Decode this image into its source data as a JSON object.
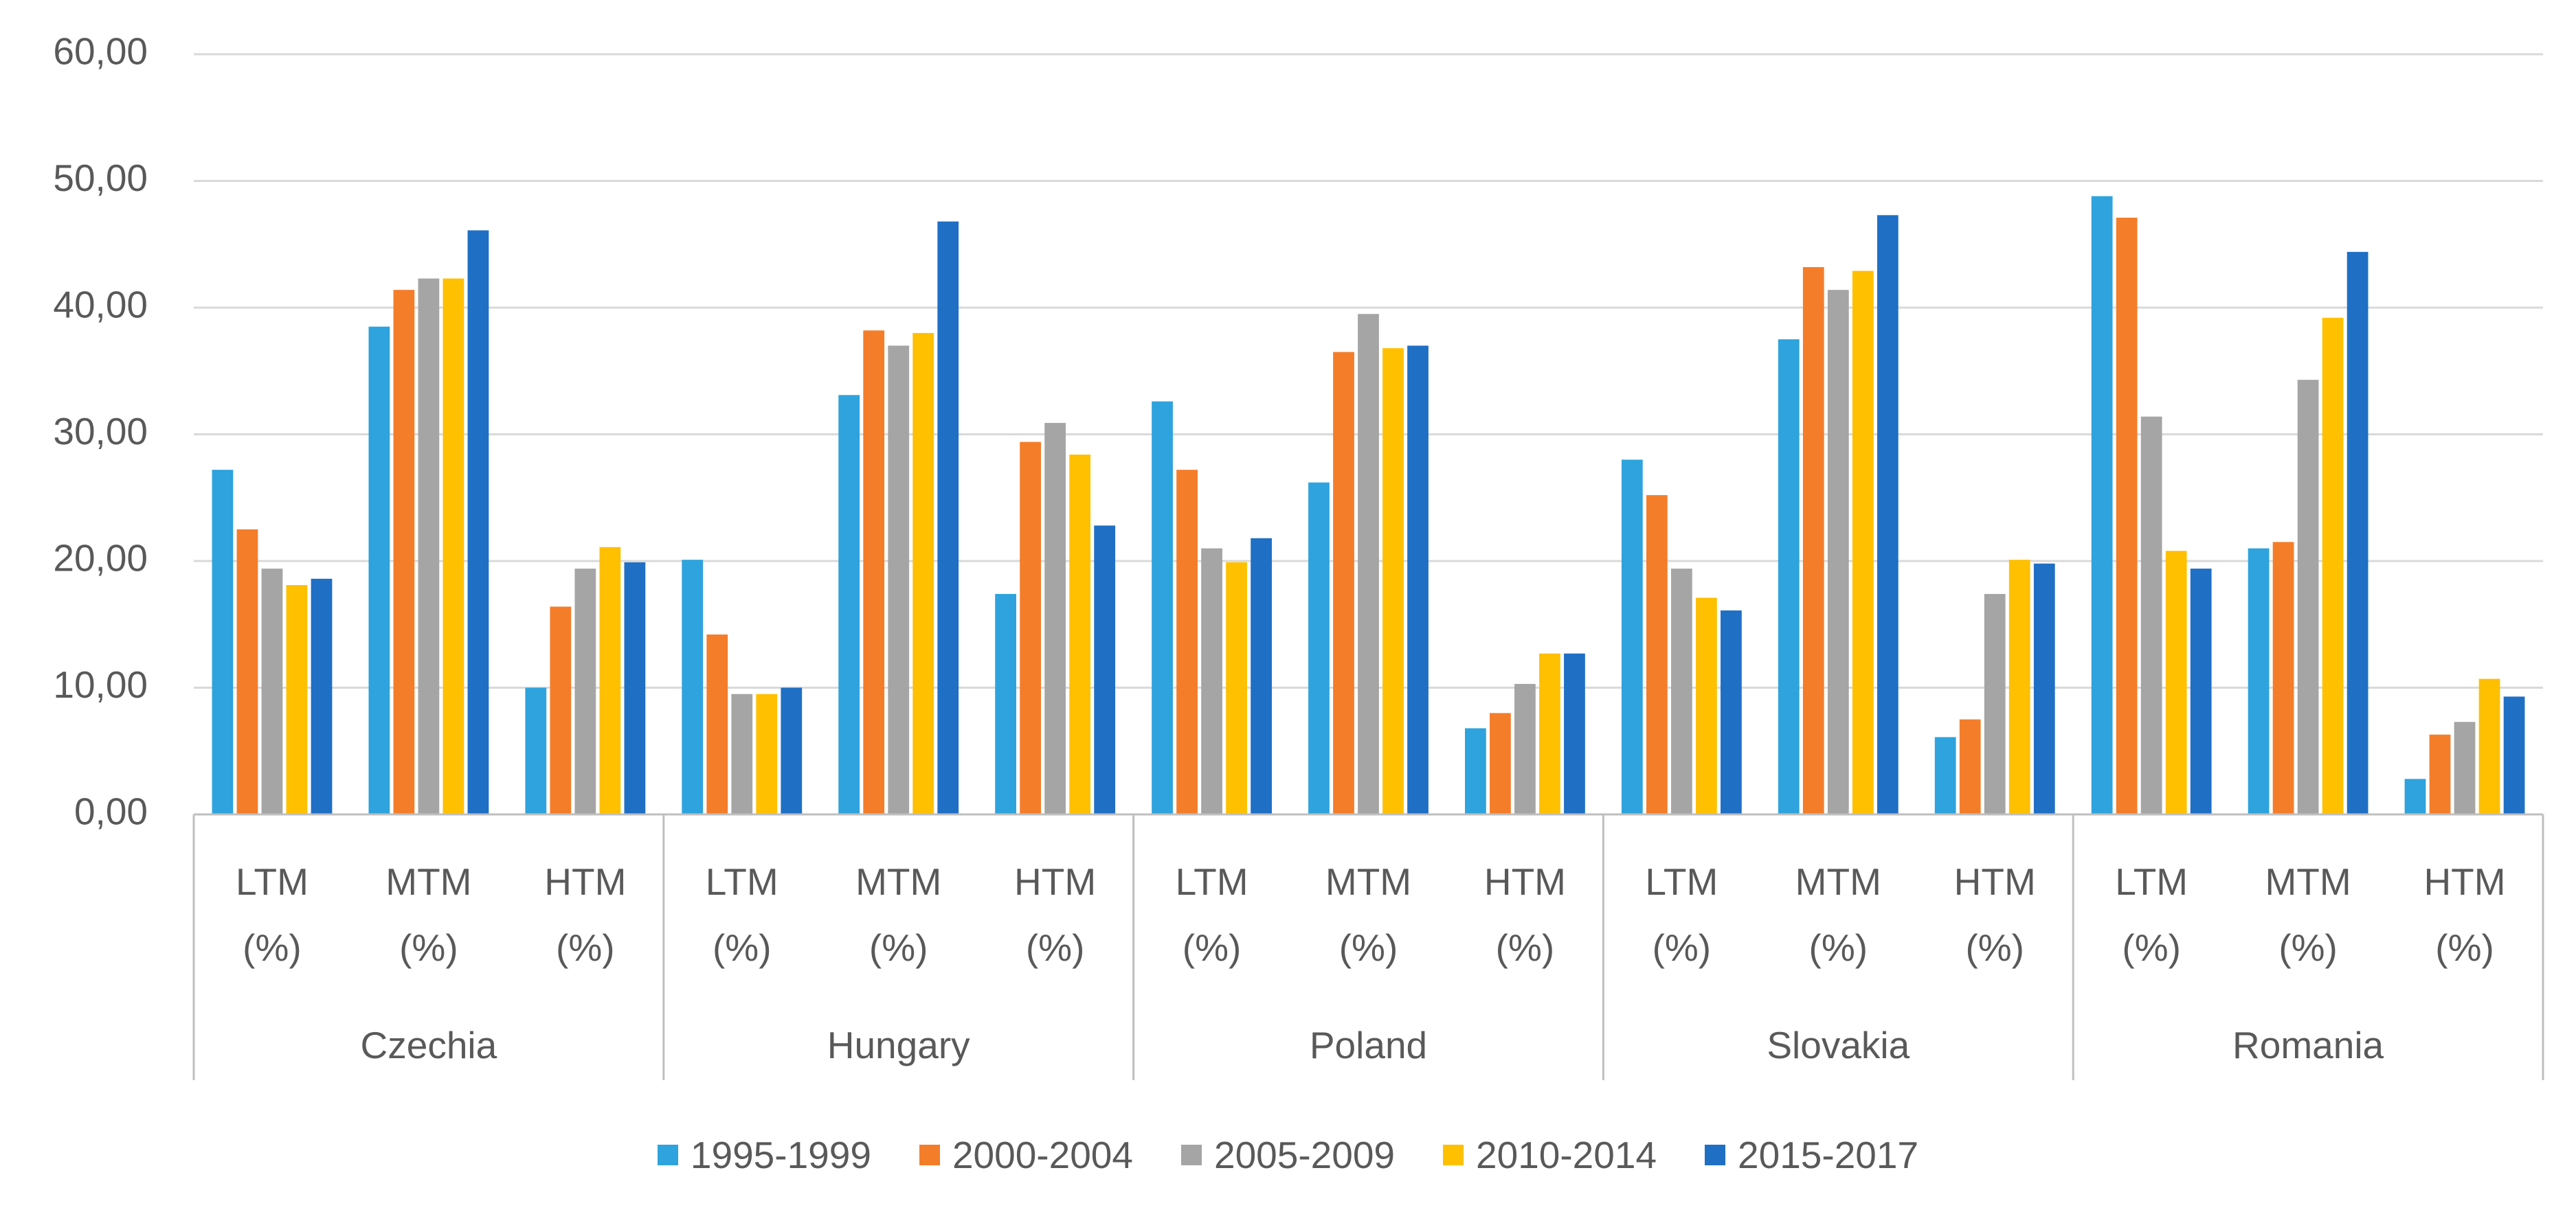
{
  "chart_data": {
    "type": "bar",
    "categories": [
      "LTM (%)",
      "MTM (%)",
      "HTM (%)",
      "LTM (%)",
      "MTM (%)",
      "HTM (%)",
      "LTM (%)",
      "MTM (%)",
      "HTM (%)",
      "LTM (%)",
      "MTM (%)",
      "HTM (%)",
      "LTM (%)",
      "MTM (%)",
      "HTM (%)"
    ],
    "groups": [
      "Czechia",
      "Hungary",
      "Poland",
      "Slovakia",
      "Romania"
    ],
    "series": [
      {
        "name": "1995-1999",
        "color": "#2ea3dd",
        "values": [
          27.2,
          38.5,
          10.0,
          20.1,
          33.1,
          17.4,
          32.6,
          26.2,
          6.8,
          28.0,
          37.5,
          6.1,
          48.8,
          21.0,
          2.8
        ]
      },
      {
        "name": "2000-2004",
        "color": "#f47d2a",
        "values": [
          22.5,
          41.4,
          16.4,
          14.2,
          38.2,
          29.4,
          27.2,
          36.5,
          8.0,
          25.2,
          43.2,
          7.5,
          47.1,
          21.5,
          6.3
        ]
      },
      {
        "name": "2005-2009",
        "color": "#a5a5a5",
        "values": [
          19.4,
          42.3,
          19.4,
          9.5,
          37.0,
          30.9,
          21.0,
          39.5,
          10.3,
          19.4,
          41.4,
          17.4,
          31.4,
          34.3,
          7.3
        ]
      },
      {
        "name": "2010-2014",
        "color": "#ffc000",
        "values": [
          18.1,
          42.3,
          21.1,
          9.5,
          38.0,
          28.4,
          19.9,
          36.8,
          12.7,
          17.1,
          42.9,
          20.1,
          20.8,
          39.2,
          10.7
        ]
      },
      {
        "name": "2015-2017",
        "color": "#1f6fc5",
        "values": [
          18.6,
          46.1,
          19.9,
          10.0,
          46.8,
          22.8,
          21.8,
          37.0,
          12.7,
          16.1,
          47.3,
          19.8,
          19.4,
          44.4,
          9.3
        ]
      }
    ],
    "ylim": [
      0,
      60
    ],
    "yticks": [
      {
        "value": 0,
        "label": "0,00"
      },
      {
        "value": 10,
        "label": "10,00"
      },
      {
        "value": 20,
        "label": "20,00"
      },
      {
        "value": 30,
        "label": "30,00"
      },
      {
        "value": 40,
        "label": "40,00"
      },
      {
        "value": 50,
        "label": "50,00"
      },
      {
        "value": 60,
        "label": "60,00"
      }
    ],
    "grid": true,
    "legend": "bottom"
  }
}
